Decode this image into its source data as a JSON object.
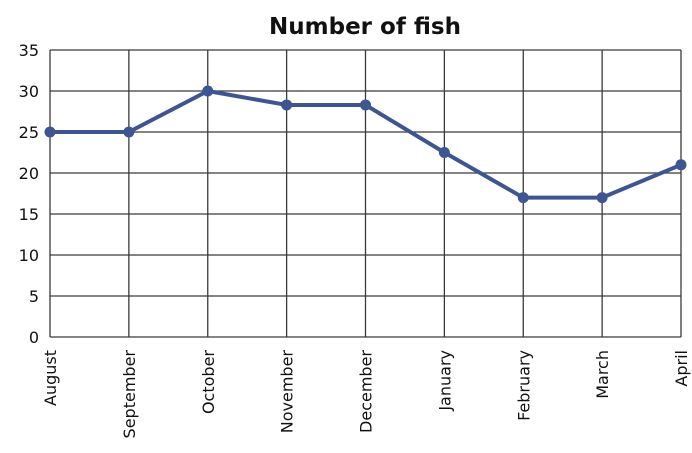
{
  "chart_data": {
    "type": "line",
    "title": "Number of fish",
    "xlabel": "",
    "ylabel": "",
    "categories": [
      "August",
      "September",
      "October",
      "November",
      "December",
      "January",
      "February",
      "March",
      "April"
    ],
    "series": [
      {
        "values": [
          25,
          25,
          30,
          28.3,
          28.3,
          22.5,
          17,
          17,
          21
        ]
      }
    ],
    "ylim": [
      0,
      35
    ],
    "yticks": [
      "0",
      "5",
      "10",
      "15",
      "20",
      "25",
      "30",
      "35"
    ],
    "grid": true,
    "legend": "none",
    "colors": {
      "series": "#3f5591",
      "grid": "#3a3a3a",
      "text": "#111111"
    }
  }
}
